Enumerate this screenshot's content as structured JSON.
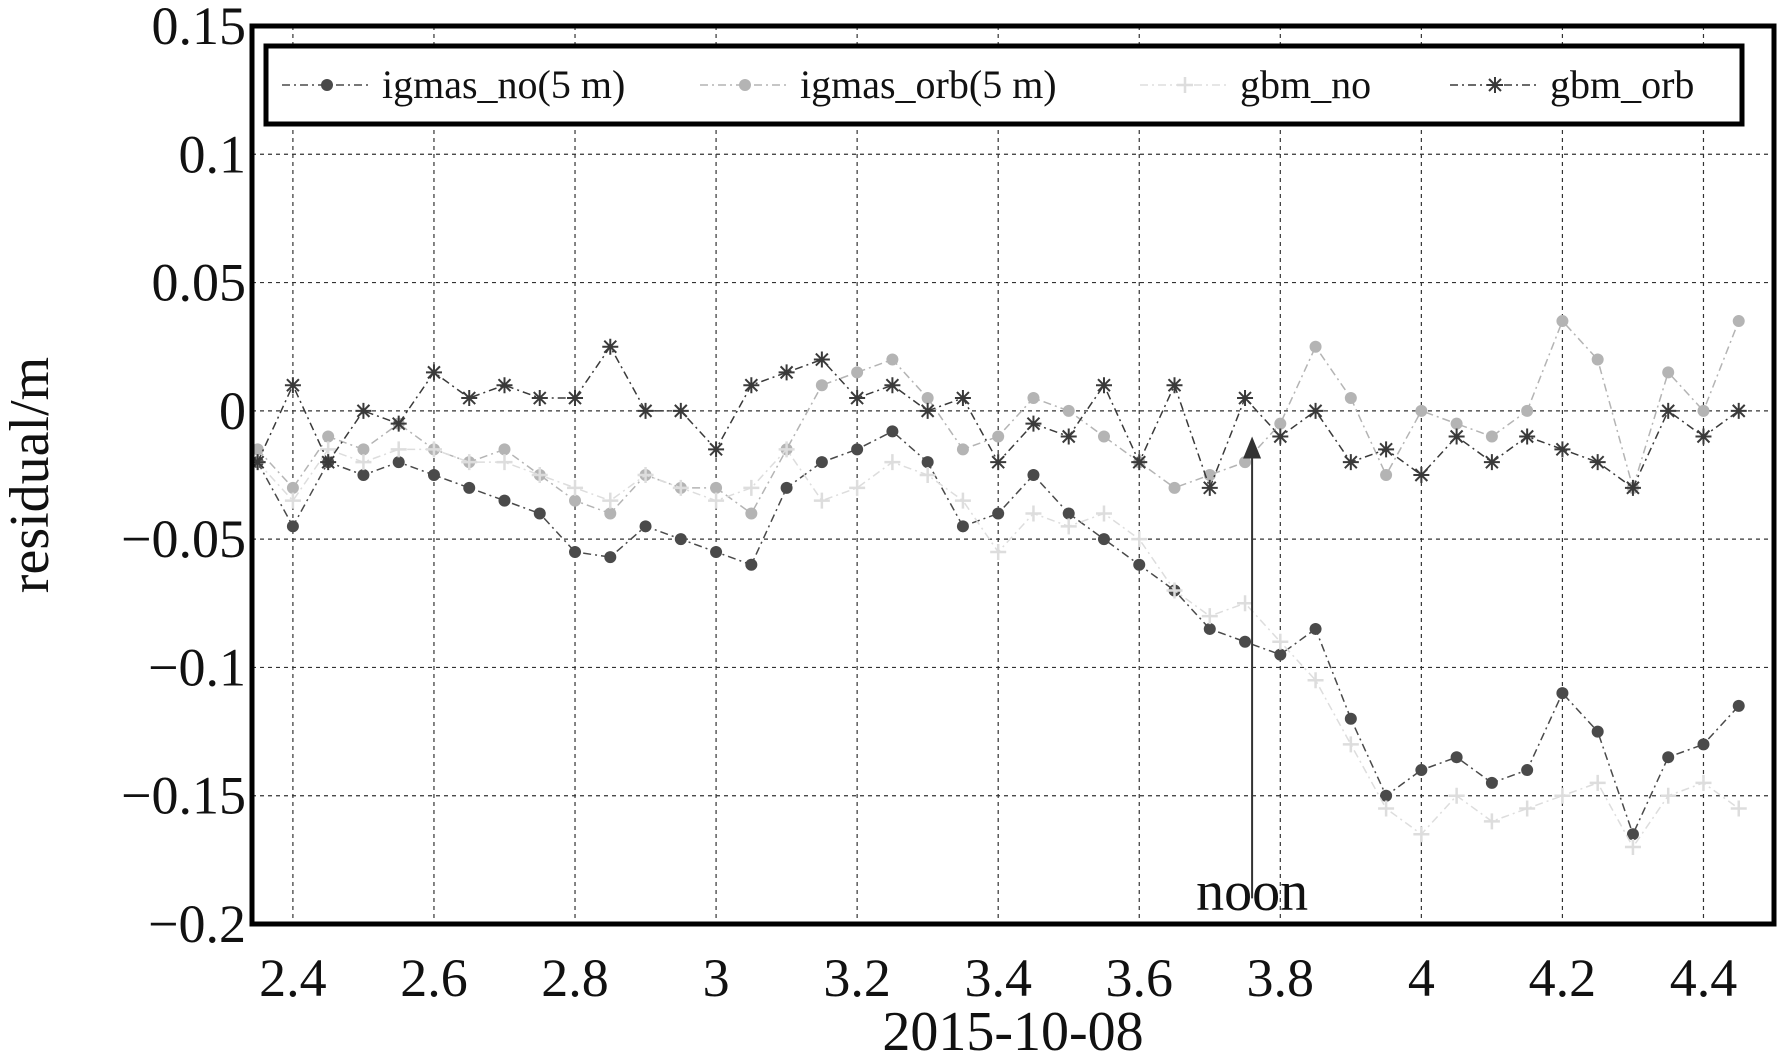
{
  "chart_data": {
    "type": "line",
    "title": "",
    "xlabel": "2015-10-08",
    "ylabel": "residual/m",
    "xlim": [
      2.342,
      4.5
    ],
    "ylim": [
      -0.2,
      0.15
    ],
    "grid": true,
    "legend_placement": "top",
    "xticks": [
      2.4,
      2.6,
      2.8,
      3,
      3.2,
      3.4,
      3.6,
      3.8,
      4,
      4.2,
      4.4
    ],
    "xtick_labels": [
      "2.4",
      "2.6",
      "2.8",
      "3",
      "3.2",
      "3.4",
      "3.6",
      "3.8",
      "4",
      "4.2",
      "4.4"
    ],
    "yticks": [
      0.15,
      0.1,
      0.05,
      0,
      -0.05,
      -0.1,
      -0.15,
      -0.2
    ],
    "ytick_labels": [
      "0.15",
      "0.1",
      "0.05",
      "0",
      "−0.05",
      "−0.1",
      "−0.15",
      "−0.2"
    ],
    "x": [
      2.35,
      2.4,
      2.45,
      2.5,
      2.55,
      2.6,
      2.65,
      2.7,
      2.75,
      2.8,
      2.85,
      2.9,
      2.95,
      3.0,
      3.05,
      3.1,
      3.15,
      3.2,
      3.25,
      3.3,
      3.35,
      3.4,
      3.45,
      3.5,
      3.55,
      3.6,
      3.65,
      3.7,
      3.75,
      3.8,
      3.85,
      3.9,
      3.95,
      4.0,
      4.05,
      4.1,
      4.15,
      4.2,
      4.25,
      4.3,
      4.35,
      4.4,
      4.45
    ],
    "series": [
      {
        "name": "igmas_no(5 m)",
        "color": "#4a4a4a",
        "marker": "circle",
        "values": [
          -0.02,
          -0.045,
          -0.02,
          -0.025,
          -0.02,
          -0.025,
          -0.03,
          -0.035,
          -0.04,
          -0.055,
          -0.057,
          -0.045,
          -0.05,
          -0.055,
          -0.06,
          -0.03,
          -0.02,
          -0.015,
          -0.008,
          -0.02,
          -0.045,
          -0.04,
          -0.025,
          -0.04,
          -0.05,
          -0.06,
          -0.07,
          -0.085,
          -0.09,
          -0.095,
          -0.085,
          -0.12,
          -0.15,
          -0.14,
          -0.135,
          -0.145,
          -0.14,
          -0.11,
          -0.125,
          -0.165,
          -0.135,
          -0.13,
          -0.115
        ]
      },
      {
        "name": "igmas_orb(5 m)",
        "color": "#b4b4b4",
        "marker": "circle",
        "values": [
          -0.015,
          -0.03,
          -0.01,
          -0.015,
          -0.005,
          -0.015,
          -0.02,
          -0.015,
          -0.025,
          -0.035,
          -0.04,
          -0.025,
          -0.03,
          -0.03,
          -0.04,
          -0.015,
          0.01,
          0.015,
          0.02,
          0.005,
          -0.015,
          -0.01,
          0.005,
          0.0,
          -0.01,
          -0.02,
          -0.03,
          -0.025,
          -0.02,
          -0.005,
          0.025,
          0.005,
          -0.025,
          0.0,
          -0.005,
          -0.01,
          0.0,
          0.035,
          0.02,
          -0.03,
          0.015,
          0.0,
          0.035
        ]
      },
      {
        "name": "gbm_no",
        "color": "#dddddd",
        "marker": "plus",
        "values": [
          -0.02,
          -0.035,
          -0.015,
          -0.02,
          -0.015,
          -0.015,
          -0.02,
          -0.02,
          -0.025,
          -0.03,
          -0.035,
          -0.025,
          -0.03,
          -0.035,
          -0.03,
          -0.015,
          -0.035,
          -0.03,
          -0.02,
          -0.025,
          -0.035,
          -0.055,
          -0.04,
          -0.045,
          -0.04,
          -0.05,
          -0.07,
          -0.08,
          -0.075,
          -0.09,
          -0.105,
          -0.13,
          -0.155,
          -0.165,
          -0.15,
          -0.16,
          -0.155,
          -0.15,
          -0.145,
          -0.17,
          -0.15,
          -0.145,
          -0.155
        ]
      },
      {
        "name": "gbm_orb",
        "color": "#3a3a3a",
        "marker": "asterisk",
        "values": [
          -0.02,
          0.01,
          -0.02,
          0.0,
          -0.005,
          0.015,
          0.005,
          0.01,
          0.005,
          0.005,
          0.025,
          0.0,
          0.0,
          -0.015,
          0.01,
          0.015,
          0.02,
          0.005,
          0.01,
          0.0,
          0.005,
          -0.02,
          -0.005,
          -0.01,
          0.01,
          -0.02,
          0.01,
          -0.03,
          0.005,
          -0.01,
          0.0,
          -0.02,
          -0.015,
          -0.025,
          -0.01,
          -0.02,
          -0.01,
          -0.015,
          -0.02,
          -0.03,
          0.0,
          -0.01,
          0.0
        ]
      }
    ],
    "annotations": [
      {
        "text": "noon",
        "x": 3.76,
        "arrow_from_y": -0.19,
        "arrow_to_y": -0.01
      }
    ]
  }
}
